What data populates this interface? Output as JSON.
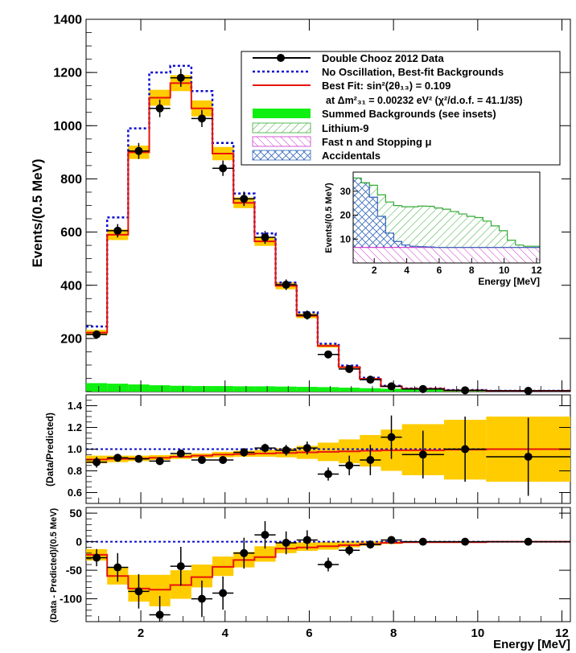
{
  "colors": {
    "band": "#FFCC00",
    "fit": "#E8140C",
    "no_osc": "#0A0AD0",
    "bkg": "#10F010",
    "li9": "#33AA33",
    "fastn": "#CC33CC",
    "acc": "#3366BB",
    "data": "#000000"
  },
  "chart_data": [
    {
      "type": "line",
      "panel": "main",
      "ylabel": "Events/(0.5 MeV)",
      "xlim": [
        0.7,
        12.2
      ],
      "ylim": [
        0,
        1400
      ],
      "yticks": [
        200,
        400,
        600,
        800,
        1000,
        1200,
        1400
      ],
      "grid": false,
      "legend_position": "top-right",
      "bin_edges": [
        0.7,
        1.2,
        1.7,
        2.2,
        2.7,
        3.2,
        3.7,
        4.2,
        4.7,
        5.2,
        5.7,
        6.2,
        6.7,
        7.2,
        7.7,
        8.2,
        9.2,
        10.2,
        12.2
      ],
      "series": [
        {
          "name": "No Oscillation, Best-fit Backgrounds",
          "style": "dotted-step",
          "values": [
            245,
            655,
            990,
            1200,
            1225,
            1130,
            935,
            745,
            595,
            410,
            298,
            180,
            98,
            52,
            22,
            12,
            6,
            3
          ]
        },
        {
          "name": "Best Fit: sin²(2θ₁₃) = 0.109",
          "style": "step",
          "values": [
            222,
            590,
            900,
            1105,
            1160,
            1065,
            895,
            710,
            565,
            398,
            285,
            172,
            92,
            48,
            20,
            11,
            5,
            3
          ]
        },
        {
          "name": "Best-fit band",
          "style": "band",
          "values_low": [
            212,
            570,
            875,
            1075,
            1130,
            1035,
            870,
            690,
            548,
            385,
            276,
            166,
            88,
            45,
            18,
            9,
            4,
            2
          ],
          "values_high": [
            232,
            610,
            925,
            1135,
            1190,
            1095,
            920,
            730,
            582,
            411,
            294,
            178,
            96,
            51,
            22,
            13,
            6,
            4
          ]
        },
        {
          "name": "Summed Backgrounds (see insets)",
          "style": "fill",
          "values": [
            32,
            30,
            27,
            24,
            22,
            21,
            21,
            20,
            20,
            19,
            18,
            17,
            15,
            13,
            11,
            9,
            7,
            6
          ]
        },
        {
          "name": "Double Chooz 2012 Data",
          "style": "points",
          "x": [
            0.95,
            1.45,
            1.95,
            2.45,
            2.95,
            3.45,
            3.95,
            4.45,
            4.95,
            5.45,
            5.95,
            6.45,
            6.95,
            7.45,
            7.95,
            8.7,
            9.7,
            11.2
          ],
          "y": [
            215,
            605,
            905,
            1065,
            1180,
            1027,
            840,
            725,
            580,
            402,
            288,
            140,
            85,
            45,
            20,
            10,
            5,
            3
          ],
          "yerr": [
            15,
            25,
            30,
            33,
            34,
            32,
            29,
            27,
            24,
            20,
            17,
            12,
            9,
            7,
            5,
            3,
            2,
            2
          ]
        }
      ],
      "legend": [
        {
          "label": "Double Chooz 2012 Data",
          "marker": "data"
        },
        {
          "label": "No Oscillation, Best-fit Backgrounds",
          "marker": "dotted"
        },
        {
          "label": "Best Fit: sin²(2θ₁₃) = 0.109",
          "marker": "line"
        },
        {
          "label": "at Δm²₃₁ = 0.00232 eV²  (χ²/d.o.f. = 41.1/35)",
          "marker": "none"
        },
        {
          "label": "Summed Backgrounds (see insets)",
          "marker": "green"
        },
        {
          "label": "Lithium-9",
          "marker": "hatch-li"
        },
        {
          "label": "Fast n and Stopping μ",
          "marker": "hatch-fn"
        },
        {
          "label": "Accidentals",
          "marker": "hatch-acc"
        }
      ]
    },
    {
      "type": "area",
      "panel": "inset",
      "xlabel": "Energy [MeV]",
      "ylabel": "Events/(0.5 MeV)",
      "xlim": [
        0.7,
        12.2
      ],
      "ylim": [
        0,
        38
      ],
      "xticks": [
        2,
        4,
        6,
        8,
        10,
        12
      ],
      "yticks": [
        10,
        20,
        30
      ],
      "bin_edges": [
        0.7,
        1.2,
        1.7,
        2.2,
        2.7,
        3.2,
        3.7,
        4.2,
        4.7,
        5.2,
        5.7,
        6.2,
        6.7,
        7.2,
        7.7,
        8.2,
        8.7,
        9.2,
        9.7,
        10.2,
        10.7,
        11.2,
        11.7,
        12.2
      ],
      "series": [
        {
          "name": "Fast n and Stopping μ",
          "values": [
            6.5,
            6.5,
            6.5,
            6.5,
            6.5,
            6.5,
            6.5,
            6.5,
            6.5,
            6.5,
            6.5,
            6.5,
            6.5,
            6.5,
            6.5,
            6.5,
            6.5,
            6.5,
            6.5,
            6.5,
            6.5,
            6.5,
            6.5
          ]
        },
        {
          "name": "Accidentals",
          "values": [
            29,
            27,
            21,
            13,
            6,
            2.5,
            1,
            0.5,
            0.3,
            0.2,
            0,
            0,
            0,
            0,
            0,
            0,
            0,
            0,
            0,
            0,
            0,
            0,
            0
          ]
        },
        {
          "name": "Lithium-9",
          "values": [
            0,
            0,
            5,
            9,
            13,
            15,
            16,
            16.5,
            17,
            17,
            16.5,
            16,
            15,
            14,
            13,
            12.5,
            11,
            9,
            7,
            3,
            1,
            0.5,
            0.5
          ]
        }
      ]
    },
    {
      "type": "scatter",
      "panel": "ratio",
      "ylabel": "(Data/Predicted)",
      "xlim": [
        0.7,
        12.2
      ],
      "ylim": [
        0.5,
        1.5
      ],
      "yticks": [
        0.6,
        0.8,
        1.0,
        1.2,
        1.4
      ],
      "bin_edges": [
        0.7,
        1.2,
        1.7,
        2.2,
        2.7,
        3.2,
        3.7,
        4.2,
        4.7,
        5.2,
        5.7,
        6.2,
        6.7,
        7.2,
        7.7,
        8.2,
        9.2,
        10.2,
        12.2
      ],
      "series": [
        {
          "name": "No Oscillation",
          "style": "dotted-line",
          "value": 1.0
        },
        {
          "name": "Best Fit",
          "style": "step",
          "values": [
            0.905,
            0.91,
            0.915,
            0.92,
            0.93,
            0.94,
            0.95,
            0.955,
            0.96,
            0.965,
            0.97,
            0.975,
            0.98,
            0.985,
            0.99,
            0.99,
            0.995,
            1.0
          ]
        },
        {
          "name": "Band",
          "style": "band",
          "values_low": [
            0.87,
            0.88,
            0.89,
            0.9,
            0.91,
            0.92,
            0.925,
            0.93,
            0.93,
            0.925,
            0.91,
            0.89,
            0.87,
            0.84,
            0.8,
            0.76,
            0.72,
            0.7
          ],
          "values_high": [
            0.94,
            0.94,
            0.94,
            0.945,
            0.95,
            0.96,
            0.975,
            0.985,
            0.995,
            1.01,
            1.03,
            1.06,
            1.09,
            1.13,
            1.18,
            1.23,
            1.27,
            1.3
          ]
        },
        {
          "name": "Data",
          "style": "points",
          "x": [
            0.95,
            1.45,
            1.95,
            2.45,
            2.95,
            3.45,
            3.95,
            4.45,
            4.95,
            5.45,
            5.95,
            6.45,
            6.95,
            7.45,
            7.95,
            8.7,
            9.7,
            11.2
          ],
          "y": [
            0.88,
            0.92,
            0.91,
            0.89,
            0.96,
            0.9,
            0.9,
            0.97,
            1.01,
            0.99,
            1.01,
            0.77,
            0.85,
            0.9,
            1.11,
            0.95,
            1.0,
            0.93
          ],
          "yerr": [
            0.05,
            0.03,
            0.03,
            0.03,
            0.03,
            0.03,
            0.03,
            0.04,
            0.04,
            0.05,
            0.06,
            0.06,
            0.09,
            0.14,
            0.2,
            0.22,
            0.3,
            0.36
          ]
        }
      ]
    },
    {
      "type": "scatter",
      "panel": "difference",
      "xlabel": "Energy [MeV]",
      "ylabel": "(Data - Predicted)/(0.5 MeV)",
      "xlim": [
        0.7,
        12.2
      ],
      "ylim": [
        -140,
        60
      ],
      "yticks": [
        -100,
        -50,
        0,
        50
      ],
      "xticks": [
        2,
        4,
        6,
        8,
        10,
        12
      ],
      "bin_edges": [
        0.7,
        1.2,
        1.7,
        2.2,
        2.7,
        3.2,
        3.7,
        4.2,
        4.7,
        5.2,
        5.7,
        6.2,
        6.7,
        7.2,
        7.7,
        8.2,
        9.2,
        10.2,
        12.2
      ],
      "series": [
        {
          "name": "No Oscillation",
          "style": "dotted-line",
          "value": 0
        },
        {
          "name": "Best Fit",
          "style": "step",
          "values": [
            -23,
            -60,
            -82,
            -84,
            -76,
            -62,
            -44,
            -32,
            -27,
            -12,
            -10,
            -8,
            -6,
            -4,
            -2,
            -1,
            -1,
            0
          ]
        },
        {
          "name": "Band",
          "style": "band",
          "values_low": [
            -33,
            -75,
            -105,
            -113,
            -100,
            -80,
            -60,
            -45,
            -35,
            -20,
            -16,
            -14,
            -10,
            -7,
            -4,
            -2,
            -1,
            -1
          ],
          "values_high": [
            -13,
            -45,
            -58,
            -58,
            -50,
            -40,
            -26,
            -18,
            -8,
            -2,
            -1,
            0,
            1,
            1,
            1,
            1,
            1,
            1
          ]
        },
        {
          "name": "Data",
          "style": "points",
          "x": [
            0.95,
            1.45,
            1.95,
            2.45,
            2.95,
            3.45,
            3.95,
            4.45,
            4.95,
            5.45,
            5.95,
            6.45,
            6.95,
            7.45,
            7.95,
            8.7,
            9.7,
            11.2
          ],
          "y": [
            -28,
            -45,
            -87,
            -128,
            -43,
            -100,
            -90,
            -20,
            12,
            -2,
            3,
            -40,
            -15,
            -5,
            3,
            0,
            0,
            0
          ],
          "yerr": [
            15,
            25,
            30,
            33,
            34,
            32,
            29,
            27,
            24,
            20,
            17,
            12,
            9,
            7,
            5,
            3,
            2,
            2
          ]
        }
      ]
    }
  ],
  "shared_xticks": [
    2,
    4,
    6,
    8,
    10,
    12
  ]
}
